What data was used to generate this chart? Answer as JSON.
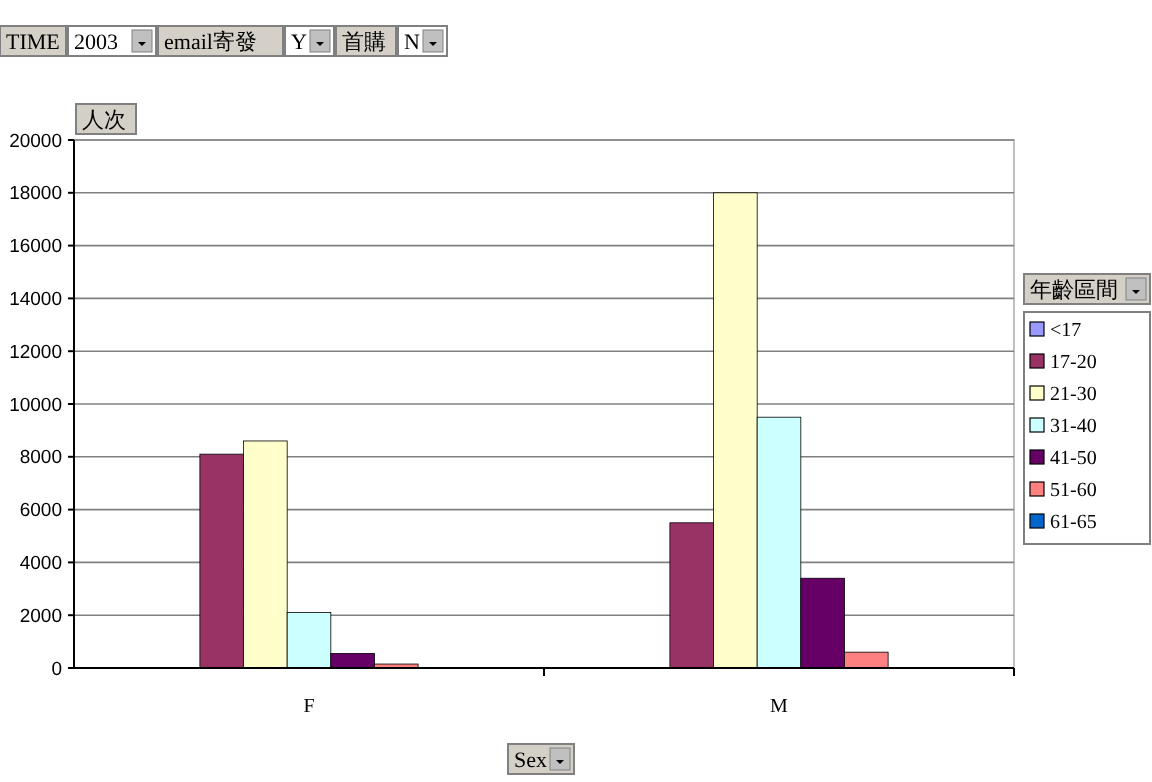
{
  "chart_data": {
    "type": "bar",
    "categories": [
      "F",
      "M"
    ],
    "series": [
      {
        "name": "<17",
        "color": "#9999ff",
        "values": [
          0,
          0
        ]
      },
      {
        "name": "17-20",
        "color": "#993366",
        "values": [
          8100,
          5500
        ]
      },
      {
        "name": "21-30",
        "color": "#ffffcc",
        "values": [
          8600,
          18000
        ]
      },
      {
        "name": "31-40",
        "color": "#ccffff",
        "values": [
          2100,
          9500
        ]
      },
      {
        "name": "41-50",
        "color": "#660066",
        "values": [
          550,
          3400
        ]
      },
      {
        "name": "51-60",
        "color": "#ff8080",
        "values": [
          150,
          600
        ]
      },
      {
        "name": "61-65",
        "color": "#0066cc",
        "values": [
          0,
          0
        ]
      }
    ],
    "ylim": [
      0,
      20000
    ],
    "yticks": [
      0,
      2000,
      4000,
      6000,
      8000,
      10000,
      12000,
      14000,
      16000,
      18000,
      20000
    ],
    "grid": "y",
    "legend": "right",
    "xlabel": "Sex",
    "ylabel": "人次",
    "legend_title": "年齡區間",
    "annotations": [
      "TIME",
      "2003",
      "email寄發",
      "Y",
      "首購",
      "N"
    ]
  }
}
